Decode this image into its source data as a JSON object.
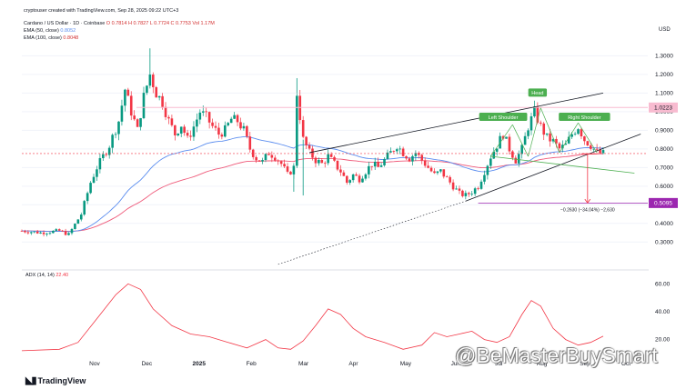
{
  "header": {
    "creator": "cryptouser created with TradingView.com, Sep 28, 2025 09:22 UTC+3",
    "symbol": "Cardano / US Dollar · 1D · Coinbase",
    "ohlc": "O 0.7814  H 0.7827  L 0.7724  C 0.7753  Vol 1.17M",
    "ema50_label": "EMA (50, close)",
    "ema50_value": "0.8052",
    "ema100_label": "EMA (100, close)",
    "ema100_value": "0.8048",
    "currency": "USD"
  },
  "colors": {
    "up": "#089981",
    "down": "#f23645",
    "ema50": "#5b8def",
    "ema100": "#ef5a7a",
    "adx": "#f23645",
    "trendline": "#131722",
    "label_green": "#4caf50",
    "target_purple": "#9c27b0",
    "resist_pink": "#f8bbd0"
  },
  "annotations": {
    "left_shoulder": "Left Shoulder",
    "head": "Head",
    "right_shoulder": "Right Shoulder",
    "measure": "−0.2630 (−34.04%) −2,630",
    "resistance_value": "1.0223",
    "target_value": "0.5095",
    "adx_label": "ADX (14, 14)",
    "adx_value": "22.40"
  },
  "branding": {
    "logo": "TradingView",
    "watermark": "@BeMasterBuySmart"
  },
  "chart_data": [
    {
      "type": "candlestick",
      "title": "",
      "y_axis_ticks": [
        1.3,
        1.2,
        1.1,
        1.0,
        0.9,
        0.8,
        0.7,
        0.6,
        0.5,
        0.4,
        0.3
      ],
      "y_tick_labels": [
        "1.3000",
        "1.2000",
        "1.1000",
        "1.0000",
        "0.9000",
        "0.8000",
        "0.7000",
        "0.6000",
        "0.5000",
        "0.4000",
        "0.3000"
      ],
      "x_tick_labels": [
        "Nov",
        "Dec",
        "2025",
        "Feb",
        "Mar",
        "Apr",
        "May",
        "Jun",
        "Jul",
        "Aug",
        "Sep",
        "Oct"
      ],
      "price_points": [
        {
          "x": 0,
          "y": 0.36
        },
        {
          "x": 6,
          "y": 0.35
        },
        {
          "x": 12,
          "y": 0.36
        },
        {
          "x": 15,
          "y": 0.34
        },
        {
          "x": 19,
          "y": 0.45
        },
        {
          "x": 22,
          "y": 0.62
        },
        {
          "x": 24,
          "y": 0.7
        },
        {
          "x": 28,
          "y": 0.82
        },
        {
          "x": 31,
          "y": 0.95
        },
        {
          "x": 33,
          "y": 1.12
        },
        {
          "x": 35,
          "y": 1.0
        },
        {
          "x": 37,
          "y": 0.9
        },
        {
          "x": 39,
          "y": 1.08
        },
        {
          "x": 41,
          "y": 1.2
        },
        {
          "x": 43,
          "y": 1.1
        },
        {
          "x": 45,
          "y": 1.05
        },
        {
          "x": 47,
          "y": 0.95
        },
        {
          "x": 49,
          "y": 0.88
        },
        {
          "x": 51,
          "y": 0.93
        },
        {
          "x": 53,
          "y": 0.85
        },
        {
          "x": 55,
          "y": 0.92
        },
        {
          "x": 57,
          "y": 1.0
        },
        {
          "x": 59,
          "y": 0.97
        },
        {
          "x": 61,
          "y": 0.92
        },
        {
          "x": 63,
          "y": 0.88
        },
        {
          "x": 65,
          "y": 0.9
        },
        {
          "x": 67,
          "y": 0.96
        },
        {
          "x": 69,
          "y": 0.95
        },
        {
          "x": 71,
          "y": 0.9
        },
        {
          "x": 73,
          "y": 0.8
        },
        {
          "x": 75,
          "y": 0.75
        },
        {
          "x": 77,
          "y": 0.73
        },
        {
          "x": 79,
          "y": 0.78
        },
        {
          "x": 81,
          "y": 0.76
        },
        {
          "x": 83,
          "y": 0.72
        },
        {
          "x": 85,
          "y": 0.66
        },
        {
          "x": 87,
          "y": 0.7
        },
        {
          "x": 88,
          "y": 1.1
        },
        {
          "x": 90,
          "y": 0.85
        },
        {
          "x": 92,
          "y": 0.78
        },
        {
          "x": 94,
          "y": 0.74
        },
        {
          "x": 96,
          "y": 0.72
        },
        {
          "x": 98,
          "y": 0.76
        },
        {
          "x": 100,
          "y": 0.72
        },
        {
          "x": 102,
          "y": 0.68
        },
        {
          "x": 104,
          "y": 0.62
        },
        {
          "x": 106,
          "y": 0.66
        },
        {
          "x": 108,
          "y": 0.64
        },
        {
          "x": 110,
          "y": 0.68
        },
        {
          "x": 112,
          "y": 0.72
        },
        {
          "x": 114,
          "y": 0.7
        },
        {
          "x": 116,
          "y": 0.74
        },
        {
          "x": 118,
          "y": 0.78
        },
        {
          "x": 120,
          "y": 0.82
        },
        {
          "x": 122,
          "y": 0.78
        },
        {
          "x": 124,
          "y": 0.75
        },
        {
          "x": 126,
          "y": 0.78
        },
        {
          "x": 128,
          "y": 0.74
        },
        {
          "x": 130,
          "y": 0.7
        },
        {
          "x": 132,
          "y": 0.66
        },
        {
          "x": 134,
          "y": 0.68
        },
        {
          "x": 136,
          "y": 0.64
        },
        {
          "x": 138,
          "y": 0.6
        },
        {
          "x": 140,
          "y": 0.56
        },
        {
          "x": 142,
          "y": 0.55
        },
        {
          "x": 144,
          "y": 0.57
        },
        {
          "x": 146,
          "y": 0.6
        },
        {
          "x": 148,
          "y": 0.68
        },
        {
          "x": 150,
          "y": 0.76
        },
        {
          "x": 152,
          "y": 0.82
        },
        {
          "x": 154,
          "y": 0.88
        },
        {
          "x": 156,
          "y": 0.8
        },
        {
          "x": 158,
          "y": 0.74
        },
        {
          "x": 160,
          "y": 0.8
        },
        {
          "x": 162,
          "y": 0.92
        },
        {
          "x": 164,
          "y": 1.0
        },
        {
          "x": 166,
          "y": 0.92
        },
        {
          "x": 168,
          "y": 0.86
        },
        {
          "x": 170,
          "y": 0.84
        },
        {
          "x": 172,
          "y": 0.8
        },
        {
          "x": 174,
          "y": 0.82
        },
        {
          "x": 176,
          "y": 0.88
        },
        {
          "x": 178,
          "y": 0.92
        },
        {
          "x": 180,
          "y": 0.85
        },
        {
          "x": 182,
          "y": 0.82
        },
        {
          "x": 184,
          "y": 0.78
        },
        {
          "x": 186,
          "y": 0.775
        }
      ]
    },
    {
      "type": "line",
      "title": "ADX (14, 14)",
      "y_axis_ticks": [
        60,
        40,
        20
      ],
      "y_tick_labels": [
        "60.00",
        "40.00",
        "20.00"
      ],
      "series": [
        {
          "name": "ADX (14, 14)",
          "values": [
            {
              "x": 0,
              "y": 12
            },
            {
              "x": 12,
              "y": 13
            },
            {
              "x": 18,
              "y": 18
            },
            {
              "x": 24,
              "y": 35
            },
            {
              "x": 30,
              "y": 52
            },
            {
              "x": 34,
              "y": 60
            },
            {
              "x": 38,
              "y": 56
            },
            {
              "x": 42,
              "y": 42
            },
            {
              "x": 48,
              "y": 30
            },
            {
              "x": 54,
              "y": 24
            },
            {
              "x": 60,
              "y": 22
            },
            {
              "x": 66,
              "y": 18
            },
            {
              "x": 72,
              "y": 14
            },
            {
              "x": 78,
              "y": 20
            },
            {
              "x": 82,
              "y": 14
            },
            {
              "x": 86,
              "y": 13
            },
            {
              "x": 90,
              "y": 19
            },
            {
              "x": 94,
              "y": 30
            },
            {
              "x": 98,
              "y": 42
            },
            {
              "x": 102,
              "y": 38
            },
            {
              "x": 106,
              "y": 28
            },
            {
              "x": 110,
              "y": 22
            },
            {
              "x": 116,
              "y": 18
            },
            {
              "x": 122,
              "y": 13
            },
            {
              "x": 128,
              "y": 16
            },
            {
              "x": 132,
              "y": 25
            },
            {
              "x": 136,
              "y": 22
            },
            {
              "x": 140,
              "y": 24
            },
            {
              "x": 144,
              "y": 26
            },
            {
              "x": 148,
              "y": 20
            },
            {
              "x": 152,
              "y": 18
            },
            {
              "x": 156,
              "y": 22
            },
            {
              "x": 160,
              "y": 38
            },
            {
              "x": 163,
              "y": 48
            },
            {
              "x": 166,
              "y": 44
            },
            {
              "x": 170,
              "y": 28
            },
            {
              "x": 174,
              "y": 20
            },
            {
              "x": 178,
              "y": 16
            },
            {
              "x": 182,
              "y": 18
            },
            {
              "x": 186,
              "y": 22.4
            }
          ]
        }
      ]
    }
  ]
}
